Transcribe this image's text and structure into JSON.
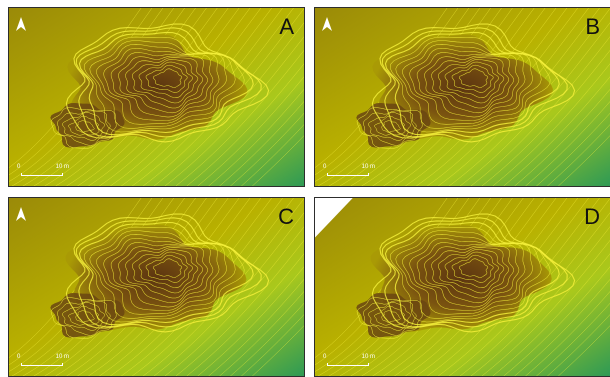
{
  "panels": [
    {
      "letter": "A",
      "scale_zero": "0",
      "scale_max": "10 m",
      "north_icon": "north-arrow-icon"
    },
    {
      "letter": "B",
      "scale_zero": "0",
      "scale_max": "10 m",
      "north_icon": "north-arrow-icon"
    },
    {
      "letter": "C",
      "scale_zero": "0",
      "scale_max": "10 m",
      "north_icon": "north-arrow-icon"
    },
    {
      "letter": "D",
      "scale_zero": "0",
      "scale_max": "10 m",
      "north_icon": "north-arrow-icon"
    }
  ],
  "colors": {
    "high_elevation": "#5c3510",
    "mid_elevation": "#b9b100",
    "low_elevation": "#2e9a55",
    "contour_line": "#f3ef3a",
    "no_data_white": "#ffffff"
  }
}
